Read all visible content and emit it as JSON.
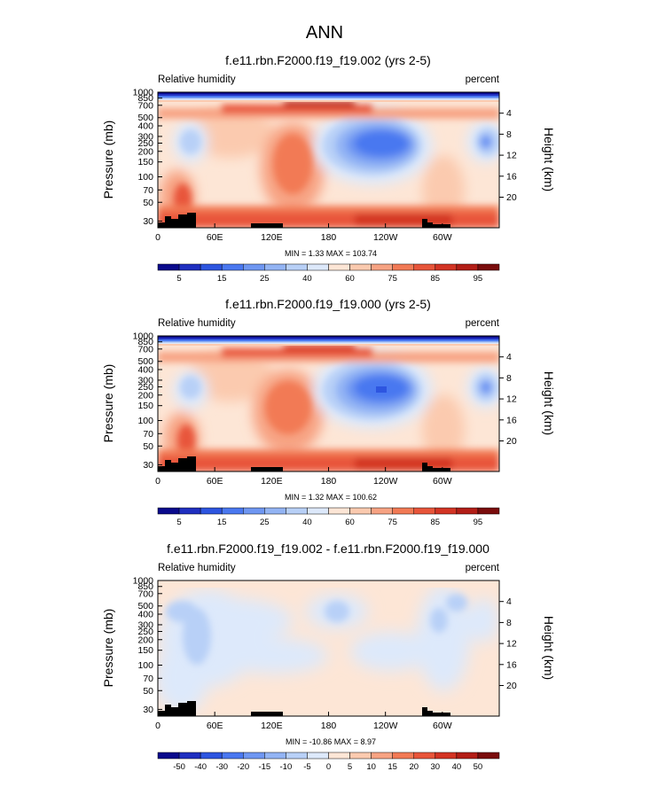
{
  "figure_title": "ANN",
  "chart_data": [
    {
      "type": "heatmap",
      "title": "f.e11.rbn.F2000.f19_f19.002 (yrs 2-5)",
      "left_label": "Relative humidity",
      "right_label": "percent",
      "xlabel": "",
      "ylabel": "Pressure (mb)",
      "y2label": "Height (km)",
      "x_ticks": [
        "0",
        "60E",
        "120E",
        "180",
        "120W",
        "60W"
      ],
      "y_ticks": [
        "30",
        "50",
        "70",
        "100",
        "150",
        "200",
        "250",
        "300",
        "400",
        "500",
        "700",
        "850",
        "1000"
      ],
      "y2_ticks": [
        "20",
        "16",
        "12",
        "8",
        "4"
      ],
      "minmax_text": "MIN =   1.33  MAX = 103.74",
      "min": 1.33,
      "max": 103.74,
      "colorbar_labels": [
        "5",
        "15",
        "25",
        "40",
        "60",
        "75",
        "85",
        "95"
      ],
      "colorbar_levels": [
        5,
        10,
        15,
        20,
        25,
        30,
        40,
        50,
        60,
        70,
        75,
        80,
        85,
        90,
        95
      ]
    },
    {
      "type": "heatmap",
      "title": "f.e11.rbn.F2000.f19_f19.000 (yrs 2-5)",
      "left_label": "Relative humidity",
      "right_label": "percent",
      "xlabel": "",
      "ylabel": "Pressure (mb)",
      "y2label": "Height (km)",
      "x_ticks": [
        "0",
        "60E",
        "120E",
        "180",
        "120W",
        "60W"
      ],
      "y_ticks": [
        "30",
        "50",
        "70",
        "100",
        "150",
        "200",
        "250",
        "300",
        "400",
        "500",
        "700",
        "850",
        "1000"
      ],
      "y2_ticks": [
        "20",
        "16",
        "12",
        "8",
        "4"
      ],
      "minmax_text": "MIN =   1.32  MAX = 100.62",
      "min": 1.32,
      "max": 100.62,
      "colorbar_labels": [
        "5",
        "15",
        "25",
        "40",
        "60",
        "75",
        "85",
        "95"
      ],
      "colorbar_levels": [
        5,
        10,
        15,
        20,
        25,
        30,
        40,
        50,
        60,
        70,
        75,
        80,
        85,
        90,
        95
      ]
    },
    {
      "type": "heatmap",
      "title": "f.e11.rbn.F2000.f19_f19.002 - f.e11.rbn.F2000.f19_f19.000",
      "left_label": "Relative humidity",
      "right_label": "percent",
      "xlabel": "",
      "ylabel": "Pressure (mb)",
      "y2label": "Height (km)",
      "x_ticks": [
        "0",
        "60E",
        "120E",
        "180",
        "120W",
        "60W"
      ],
      "y_ticks": [
        "30",
        "50",
        "70",
        "100",
        "150",
        "200",
        "250",
        "300",
        "400",
        "500",
        "700",
        "850",
        "1000"
      ],
      "y2_ticks": [
        "20",
        "16",
        "12",
        "8",
        "4"
      ],
      "minmax_text": "MIN = -10.86  MAX =   8.97",
      "min": -10.86,
      "max": 8.97,
      "colorbar_labels": [
        "-50",
        "-40",
        "-30",
        "-20",
        "-15",
        "-10",
        "-5",
        "0",
        "5",
        "10",
        "15",
        "20",
        "30",
        "40",
        "50"
      ],
      "colorbar_levels": [
        -50,
        -40,
        -30,
        -20,
        -15,
        -10,
        -5,
        0,
        5,
        10,
        15,
        20,
        30,
        40,
        50
      ]
    }
  ],
  "colors": {
    "abs": [
      "#0a0a8c",
      "#1f2fc0",
      "#2d55e0",
      "#4a78f0",
      "#6f97f2",
      "#93b4f4",
      "#b8d0f7",
      "#dde9fb",
      "#fde6d6",
      "#fbcaaf",
      "#f7a383",
      "#f27a55",
      "#e8553a",
      "#d33424",
      "#b31e17",
      "#7a0c0c"
    ],
    "diff": [
      "#0a0a8c",
      "#1f2fc0",
      "#2d55e0",
      "#4a78f0",
      "#6f97f2",
      "#93b4f4",
      "#b8d0f7",
      "#dde9fb",
      "#fde6d6",
      "#fbcaaf",
      "#f7a383",
      "#f27a55",
      "#e8553a",
      "#d33424",
      "#b31e17",
      "#7a0c0c"
    ],
    "terrain": "#000000",
    "frame": "#000000"
  }
}
